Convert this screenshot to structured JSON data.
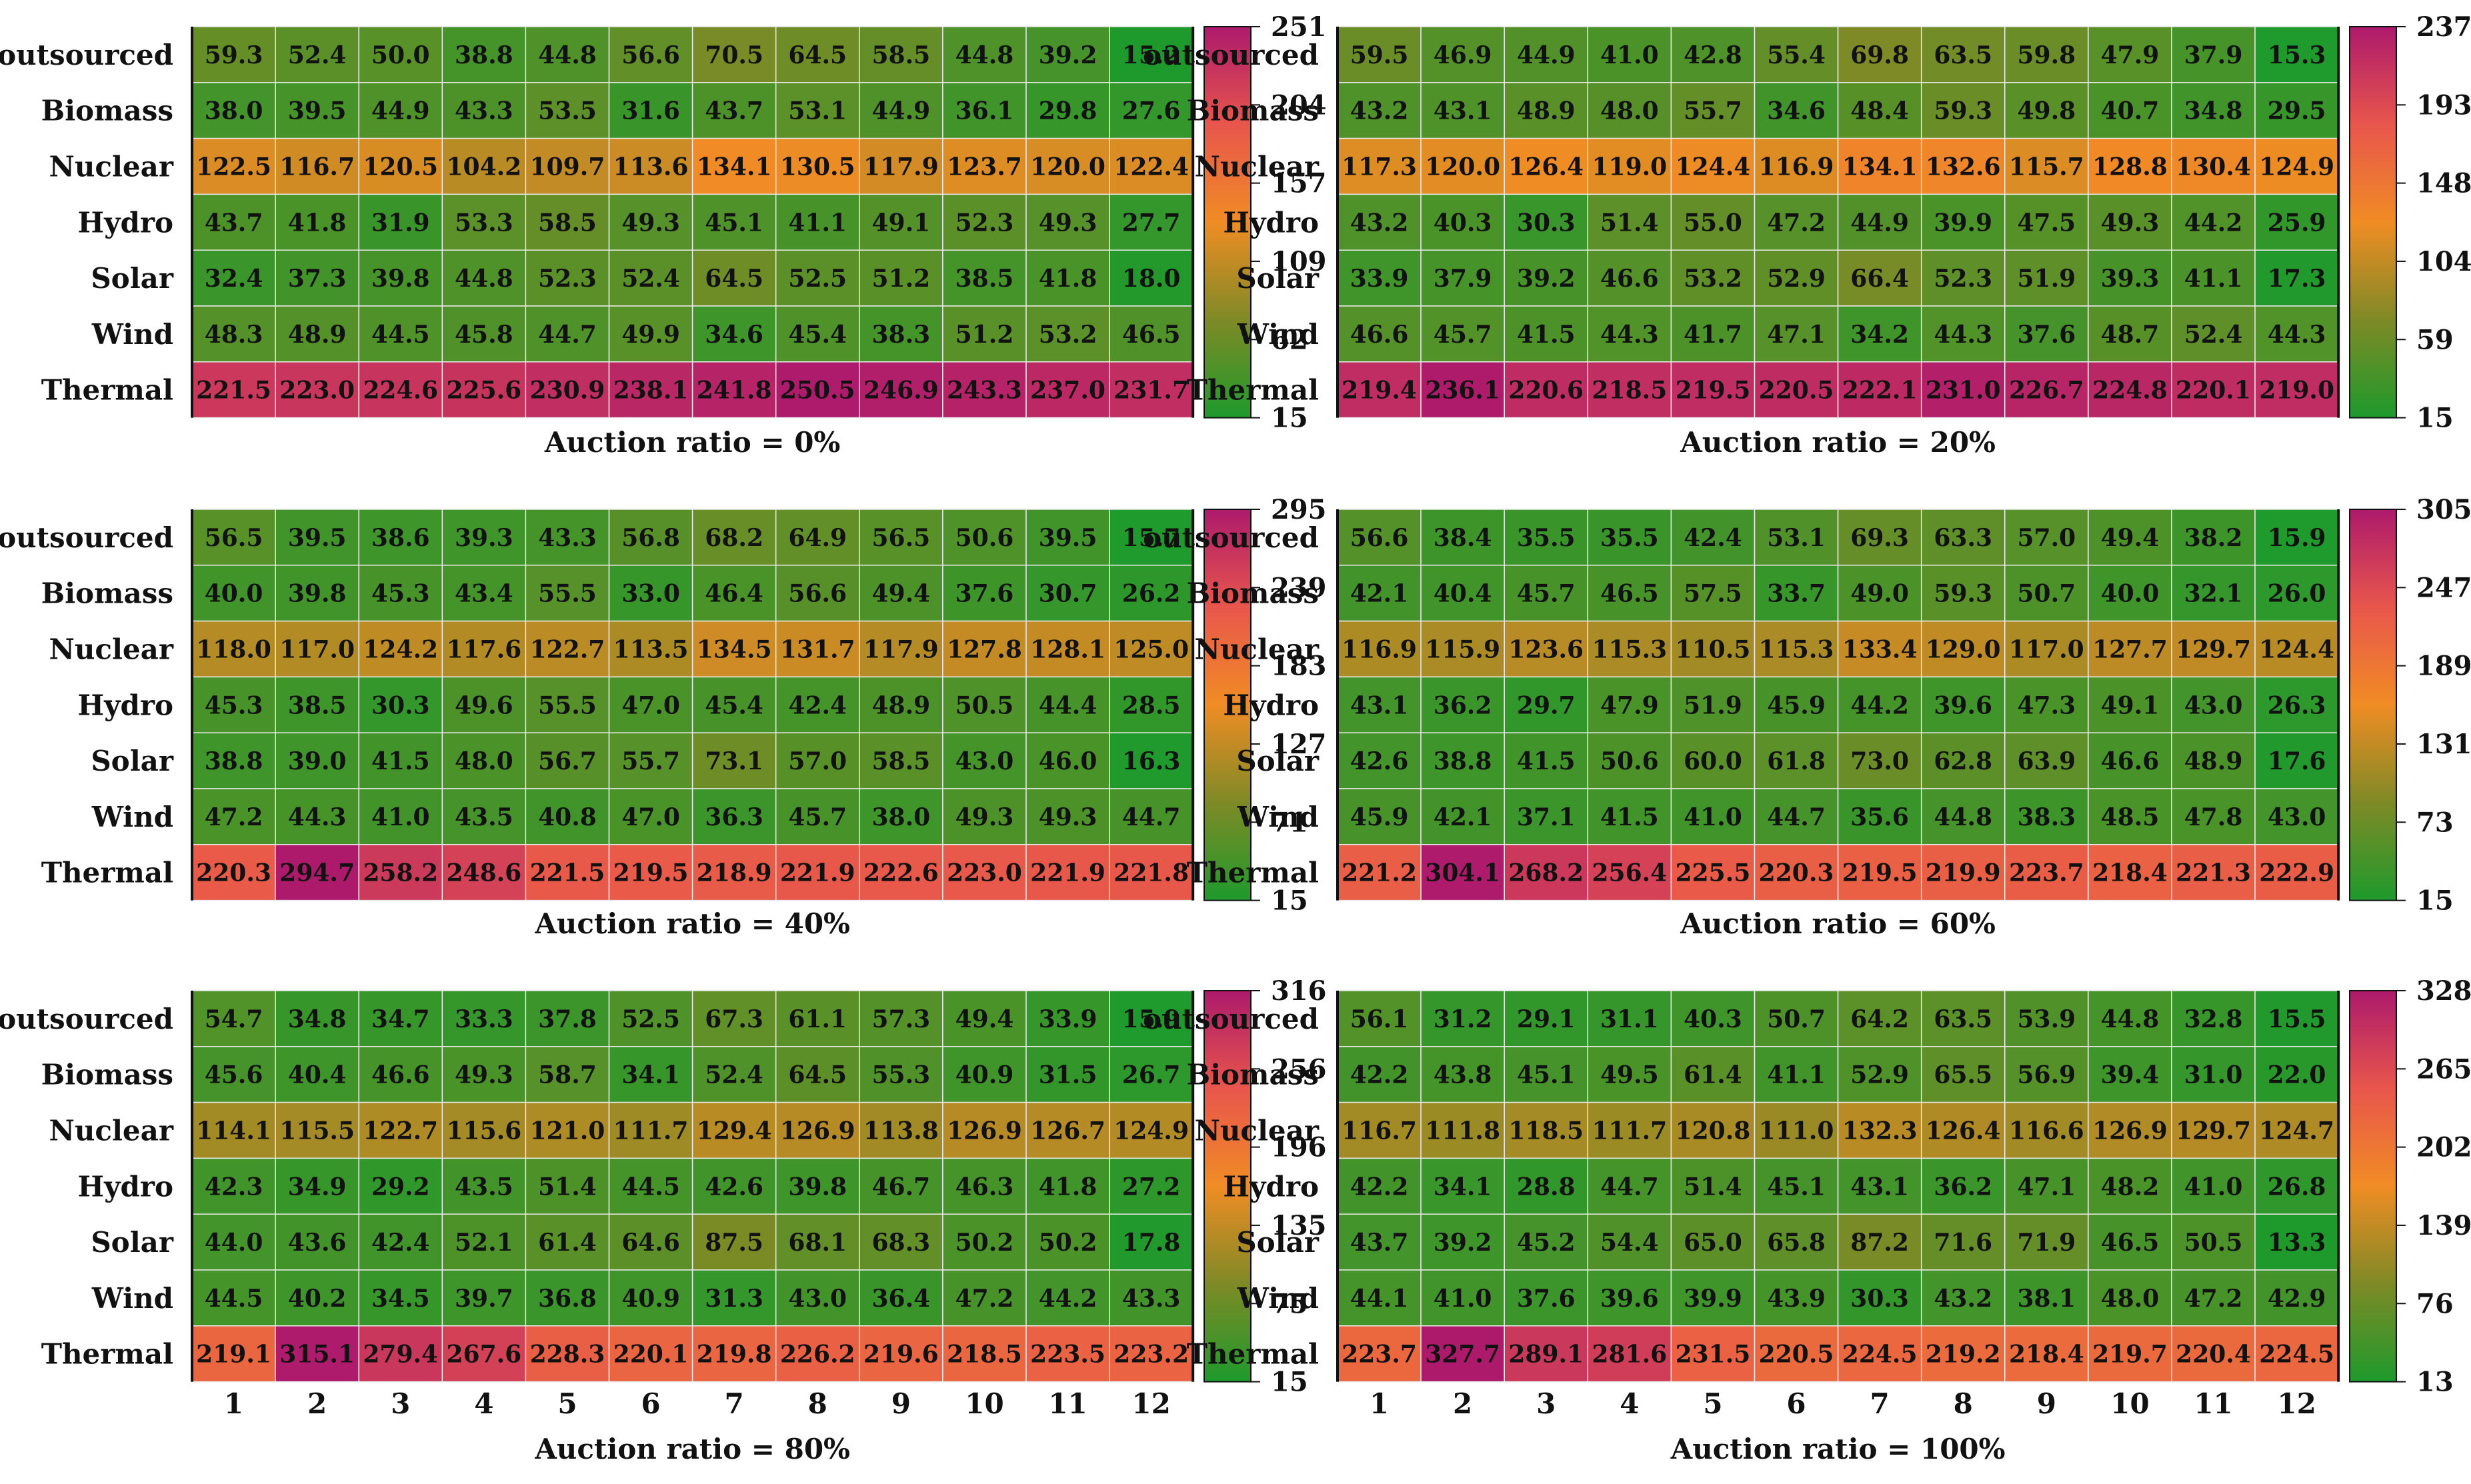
{
  "chart_data": [
    {
      "type": "heatmap",
      "title": "Auction ratio = 0%",
      "rows": [
        "outsourced",
        "Biomass",
        "Nuclear",
        "Hydro",
        "Solar",
        "Wind",
        "Thermal"
      ],
      "columns": [
        "1",
        "2",
        "3",
        "4",
        "5",
        "6",
        "7",
        "8",
        "9",
        "10",
        "11",
        "12"
      ],
      "show_x_ticks": false,
      "colorbar": {
        "min": 15,
        "max": 251,
        "ticks": [
          "251",
          "204",
          "157",
          "109",
          "62",
          "15"
        ]
      },
      "values": [
        [
          59.3,
          52.4,
          50.0,
          38.8,
          44.8,
          56.6,
          70.5,
          64.5,
          58.5,
          44.8,
          39.2,
          15.2
        ],
        [
          38.0,
          39.5,
          44.9,
          43.3,
          53.5,
          31.6,
          43.7,
          53.1,
          44.9,
          36.1,
          29.8,
          27.6
        ],
        [
          122.5,
          116.7,
          120.5,
          104.2,
          109.7,
          113.6,
          134.1,
          130.5,
          117.9,
          123.7,
          120.0,
          122.4
        ],
        [
          43.7,
          41.8,
          31.9,
          53.3,
          58.5,
          49.3,
          45.1,
          41.1,
          49.1,
          52.3,
          49.3,
          27.7
        ],
        [
          32.4,
          37.3,
          39.8,
          44.8,
          52.3,
          52.4,
          64.5,
          52.5,
          51.2,
          38.5,
          41.8,
          18.0
        ],
        [
          48.3,
          48.9,
          44.5,
          45.8,
          44.7,
          49.9,
          34.6,
          45.4,
          38.3,
          51.2,
          53.2,
          46.5
        ],
        [
          221.5,
          223.0,
          224.6,
          225.6,
          230.9,
          238.1,
          241.8,
          250.5,
          246.9,
          243.3,
          237.0,
          231.7
        ]
      ]
    },
    {
      "type": "heatmap",
      "title": "Auction ratio = 20%",
      "rows": [
        "outsourced",
        "Biomass",
        "Nuclear",
        "Hydro",
        "Solar",
        "Wind",
        "Thermal"
      ],
      "columns": [
        "1",
        "2",
        "3",
        "4",
        "5",
        "6",
        "7",
        "8",
        "9",
        "10",
        "11",
        "12"
      ],
      "show_x_ticks": false,
      "colorbar": {
        "min": 15,
        "max": 237,
        "ticks": [
          "237",
          "193",
          "148",
          "104",
          "59",
          "15"
        ]
      },
      "values": [
        [
          59.5,
          46.9,
          44.9,
          41.0,
          42.8,
          55.4,
          69.8,
          63.5,
          59.8,
          47.9,
          37.9,
          15.3
        ],
        [
          43.2,
          43.1,
          48.9,
          48.0,
          55.7,
          34.6,
          48.4,
          59.3,
          49.8,
          40.7,
          34.8,
          29.5
        ],
        [
          117.3,
          120.0,
          126.4,
          119.0,
          124.4,
          116.9,
          134.1,
          132.6,
          115.7,
          128.8,
          130.4,
          124.9
        ],
        [
          43.2,
          40.3,
          30.3,
          51.4,
          55.0,
          47.2,
          44.9,
          39.9,
          47.5,
          49.3,
          44.2,
          25.9
        ],
        [
          33.9,
          37.9,
          39.2,
          46.6,
          53.2,
          52.9,
          66.4,
          52.3,
          51.9,
          39.3,
          41.1,
          17.3
        ],
        [
          46.6,
          45.7,
          41.5,
          44.3,
          41.7,
          47.1,
          34.2,
          44.3,
          37.6,
          48.7,
          52.4,
          44.3
        ],
        [
          219.4,
          236.1,
          220.6,
          218.5,
          219.5,
          220.5,
          222.1,
          231.0,
          226.7,
          224.8,
          220.1,
          219.0
        ]
      ]
    },
    {
      "type": "heatmap",
      "title": "Auction ratio = 40%",
      "rows": [
        "outsourced",
        "Biomass",
        "Nuclear",
        "Hydro",
        "Solar",
        "Wind",
        "Thermal"
      ],
      "columns": [
        "1",
        "2",
        "3",
        "4",
        "5",
        "6",
        "7",
        "8",
        "9",
        "10",
        "11",
        "12"
      ],
      "show_x_ticks": false,
      "colorbar": {
        "min": 15,
        "max": 295,
        "ticks": [
          "295",
          "239",
          "183",
          "127",
          "71",
          "15"
        ]
      },
      "values": [
        [
          56.5,
          39.5,
          38.6,
          39.3,
          43.3,
          56.8,
          68.2,
          64.9,
          56.5,
          50.6,
          39.5,
          15.7
        ],
        [
          40.0,
          39.8,
          45.3,
          43.4,
          55.5,
          33.0,
          46.4,
          56.6,
          49.4,
          37.6,
          30.7,
          26.2
        ],
        [
          118.0,
          117.0,
          124.2,
          117.6,
          122.7,
          113.5,
          134.5,
          131.7,
          117.9,
          127.8,
          128.1,
          125.0
        ],
        [
          45.3,
          38.5,
          30.3,
          49.6,
          55.5,
          47.0,
          45.4,
          42.4,
          48.9,
          50.5,
          44.4,
          28.5
        ],
        [
          38.8,
          39.0,
          41.5,
          48.0,
          56.7,
          55.7,
          73.1,
          57.0,
          58.5,
          43.0,
          46.0,
          16.3
        ],
        [
          47.2,
          44.3,
          41.0,
          43.5,
          40.8,
          47.0,
          36.3,
          45.7,
          38.0,
          49.3,
          49.3,
          44.7
        ],
        [
          220.3,
          294.7,
          258.2,
          248.6,
          221.5,
          219.5,
          218.9,
          221.9,
          222.6,
          223.0,
          221.9,
          221.8
        ]
      ]
    },
    {
      "type": "heatmap",
      "title": "Auction ratio = 60%",
      "rows": [
        "outsourced",
        "Biomass",
        "Nuclear",
        "Hydro",
        "Solar",
        "Wind",
        "Thermal"
      ],
      "columns": [
        "1",
        "2",
        "3",
        "4",
        "5",
        "6",
        "7",
        "8",
        "9",
        "10",
        "11",
        "12"
      ],
      "show_x_ticks": false,
      "colorbar": {
        "min": 15,
        "max": 305,
        "ticks": [
          "305",
          "247",
          "189",
          "131",
          "73",
          "15"
        ]
      },
      "values": [
        [
          56.6,
          38.4,
          35.5,
          35.5,
          42.4,
          53.1,
          69.3,
          63.3,
          57.0,
          49.4,
          38.2,
          15.9
        ],
        [
          42.1,
          40.4,
          45.7,
          46.5,
          57.5,
          33.7,
          49.0,
          59.3,
          50.7,
          40.0,
          32.1,
          26.0
        ],
        [
          116.9,
          115.9,
          123.6,
          115.3,
          110.5,
          115.3,
          133.4,
          129.0,
          117.0,
          127.7,
          129.7,
          124.4
        ],
        [
          43.1,
          36.2,
          29.7,
          47.9,
          51.9,
          45.9,
          44.2,
          39.6,
          47.3,
          49.1,
          43.0,
          26.3
        ],
        [
          42.6,
          38.8,
          41.5,
          50.6,
          60.0,
          61.8,
          73.0,
          62.8,
          63.9,
          46.6,
          48.9,
          17.6
        ],
        [
          45.9,
          42.1,
          37.1,
          41.5,
          41.0,
          44.7,
          35.6,
          44.8,
          38.3,
          48.5,
          47.8,
          43.0
        ],
        [
          221.2,
          304.1,
          268.2,
          256.4,
          225.5,
          220.3,
          219.5,
          219.9,
          223.7,
          218.4,
          221.3,
          222.9
        ]
      ]
    },
    {
      "type": "heatmap",
      "title": "Auction ratio = 80%",
      "rows": [
        "outsourced",
        "Biomass",
        "Nuclear",
        "Hydro",
        "Solar",
        "Wind",
        "Thermal"
      ],
      "columns": [
        "1",
        "2",
        "3",
        "4",
        "5",
        "6",
        "7",
        "8",
        "9",
        "10",
        "11",
        "12"
      ],
      "show_x_ticks": true,
      "colorbar": {
        "min": 15,
        "max": 316,
        "ticks": [
          "316",
          "256",
          "196",
          "135",
          "75",
          "15"
        ]
      },
      "values": [
        [
          54.7,
          34.8,
          34.7,
          33.3,
          37.8,
          52.5,
          67.3,
          61.1,
          57.3,
          49.4,
          33.9,
          15.9
        ],
        [
          45.6,
          40.4,
          46.6,
          49.3,
          58.7,
          34.1,
          52.4,
          64.5,
          55.3,
          40.9,
          31.5,
          26.7
        ],
        [
          114.1,
          115.5,
          122.7,
          115.6,
          121.0,
          111.7,
          129.4,
          126.9,
          113.8,
          126.9,
          126.7,
          124.9
        ],
        [
          42.3,
          34.9,
          29.2,
          43.5,
          51.4,
          44.5,
          42.6,
          39.8,
          46.7,
          46.3,
          41.8,
          27.2
        ],
        [
          44.0,
          43.6,
          42.4,
          52.1,
          61.4,
          64.6,
          87.5,
          68.1,
          68.3,
          50.2,
          50.2,
          17.8
        ],
        [
          44.5,
          40.2,
          34.5,
          39.7,
          36.8,
          40.9,
          31.3,
          43.0,
          36.4,
          47.2,
          44.2,
          43.3
        ],
        [
          219.1,
          315.1,
          279.4,
          267.6,
          228.3,
          220.1,
          219.8,
          226.2,
          219.6,
          218.5,
          223.5,
          223.2
        ]
      ]
    },
    {
      "type": "heatmap",
      "title": "Auction ratio = 100%",
      "rows": [
        "outsourced",
        "Biomass",
        "Nuclear",
        "Hydro",
        "Solar",
        "Wind",
        "Thermal"
      ],
      "columns": [
        "1",
        "2",
        "3",
        "4",
        "5",
        "6",
        "7",
        "8",
        "9",
        "10",
        "11",
        "12"
      ],
      "show_x_ticks": true,
      "colorbar": {
        "min": 13,
        "max": 328,
        "ticks": [
          "328",
          "265",
          "202",
          "139",
          "76",
          "13"
        ]
      },
      "values": [
        [
          56.1,
          31.2,
          29.1,
          31.1,
          40.3,
          50.7,
          64.2,
          63.5,
          53.9,
          44.8,
          32.8,
          15.5
        ],
        [
          42.2,
          43.8,
          45.1,
          49.5,
          61.4,
          41.1,
          52.9,
          65.5,
          56.9,
          39.4,
          31.0,
          22.0
        ],
        [
          116.7,
          111.8,
          118.5,
          111.7,
          120.8,
          111.0,
          132.3,
          126.4,
          116.6,
          126.9,
          129.7,
          124.7
        ],
        [
          42.2,
          34.1,
          28.8,
          44.7,
          51.4,
          45.1,
          43.1,
          36.2,
          47.1,
          48.2,
          41.0,
          26.8
        ],
        [
          43.7,
          39.2,
          45.2,
          54.4,
          65.0,
          65.8,
          87.2,
          71.6,
          71.9,
          46.5,
          50.5,
          13.3
        ],
        [
          44.1,
          41.0,
          37.6,
          39.6,
          39.9,
          43.9,
          30.3,
          43.2,
          38.1,
          48.0,
          47.2,
          42.9
        ],
        [
          223.7,
          327.7,
          289.1,
          281.6,
          231.5,
          220.5,
          224.5,
          219.2,
          218.4,
          219.7,
          220.4,
          224.5
        ]
      ]
    }
  ],
  "colors": {
    "scale": [
      "#1e9a2c",
      "#7e8a26",
      "#f08c24",
      "#e8564c",
      "#ad1a6c"
    ],
    "text": "#111111",
    "grid": "#e8e8e8",
    "border": "#111111"
  }
}
